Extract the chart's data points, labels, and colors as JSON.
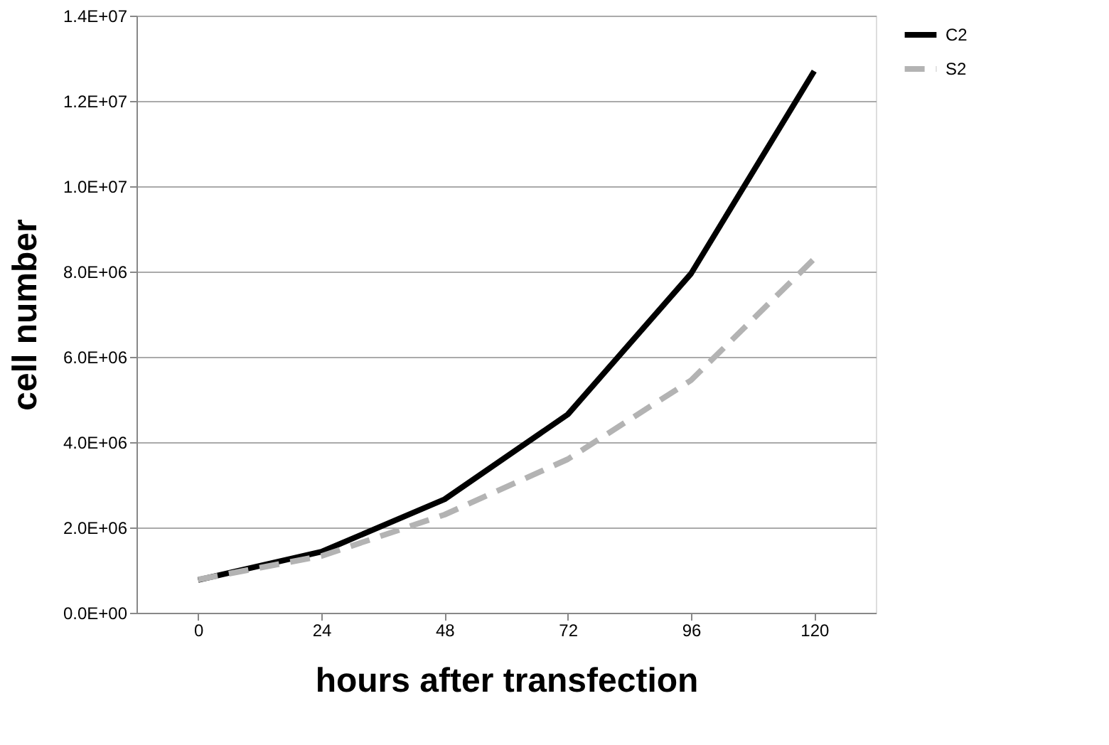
{
  "chart_data": {
    "type": "line",
    "xlabel": "hours after transfection",
    "ylabel": "cell number",
    "categories": [
      "0",
      "24",
      "48",
      "72",
      "96",
      "120"
    ],
    "series": [
      {
        "name": "C2",
        "color": "#000000",
        "line_style": "solid",
        "values": [
          770000,
          1430000,
          2660000,
          4650000,
          7950000,
          12700000
        ]
      },
      {
        "name": "S2",
        "color": "#b3b3b3",
        "line_style": "dashed",
        "values": [
          780000,
          1330000,
          2300000,
          3600000,
          5450000,
          8300000
        ]
      }
    ],
    "ylim": [
      0,
      14000000
    ],
    "yticks": [
      {
        "value": 0,
        "label": "0.0E+00"
      },
      {
        "value": 2000000,
        "label": "2.0E+06"
      },
      {
        "value": 4000000,
        "label": "4.0E+06"
      },
      {
        "value": 6000000,
        "label": "6.0E+06"
      },
      {
        "value": 8000000,
        "label": "8.0E+06"
      },
      {
        "value": 10000000,
        "label": "1.0E+07"
      },
      {
        "value": 12000000,
        "label": "1.2E+07"
      },
      {
        "value": 14000000,
        "label": "1.4E+07"
      }
    ],
    "grid": "y",
    "legend": "right",
    "marker": "none"
  }
}
